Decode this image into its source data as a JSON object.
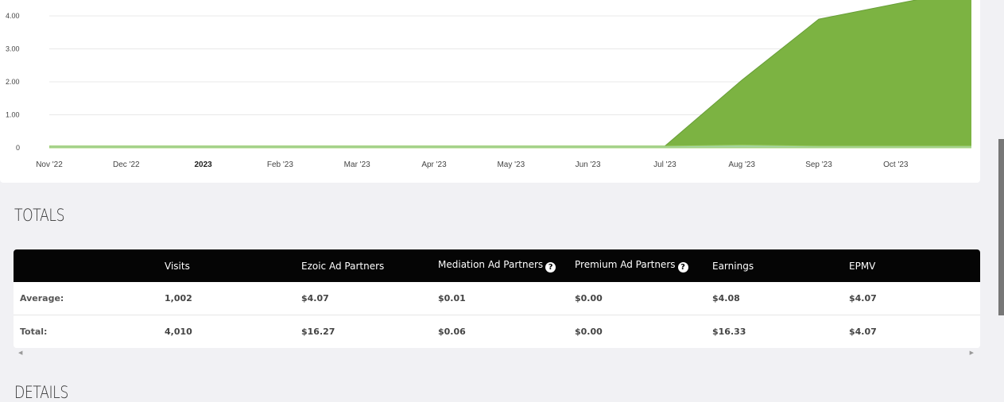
{
  "chart_data": {
    "type": "area",
    "categories": [
      "Nov '22",
      "Dec '22",
      "2023",
      "Feb '23",
      "Mar '23",
      "Apr '23",
      "May '23",
      "Jun '23",
      "Jul '23",
      "Aug '23",
      "Sep '23",
      "Oct '23"
    ],
    "bold_categories": [
      "2023"
    ],
    "yticks": [
      "0",
      "1.00",
      "2.00",
      "3.00",
      "4.00"
    ],
    "ylim": [
      0,
      4.6
    ],
    "series": [
      {
        "values": [
          0.05,
          0.05,
          0.05,
          0.05,
          0.05,
          0.05,
          0.05,
          0.05,
          0.05,
          2.05,
          3.9,
          5.2
        ],
        "color": "#7cb342"
      },
      {
        "values": [
          0.05,
          0.05,
          0.05,
          0.05,
          0.05,
          0.05,
          0.05,
          0.05,
          0.05,
          0.08,
          0.05,
          0.05
        ],
        "color": "#a5d6a7"
      }
    ],
    "grid": true
  },
  "totals": {
    "title": "TOTALS",
    "headers": [
      "",
      "Visits",
      "Ezoic Ad Partners",
      "Mediation Ad Partners",
      "Premium Ad Partners",
      "Earnings",
      "EPMV"
    ],
    "help_icon_glyph": "?",
    "rows": [
      {
        "label": "Average:",
        "cells": [
          "1,002",
          "$4.07",
          "$0.01",
          "$0.00",
          "$4.08",
          "$4.07"
        ]
      },
      {
        "label": "Total:",
        "cells": [
          "4,010",
          "$16.27",
          "$0.06",
          "$0.00",
          "$16.33",
          "$4.07"
        ]
      }
    ]
  },
  "details": {
    "title": "DETAILS"
  },
  "scroll": {
    "left_arrow": "◀",
    "right_arrow": "▶"
  }
}
